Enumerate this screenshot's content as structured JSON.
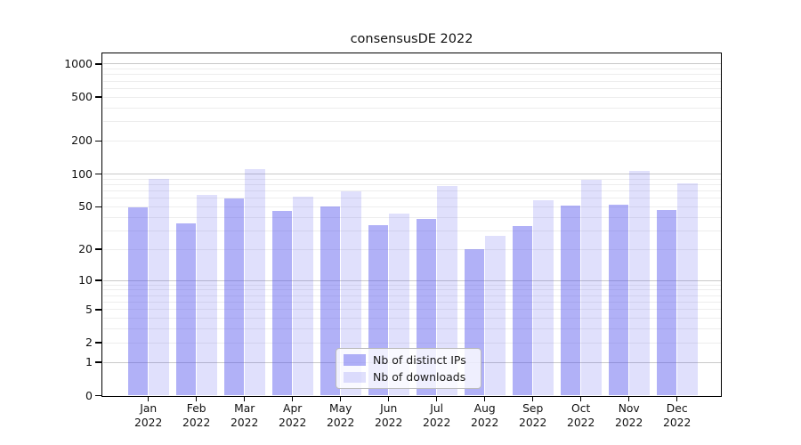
{
  "figure": {
    "title": "consensusDE 2022",
    "background": "#ffffff"
  },
  "chart_data": {
    "type": "bar",
    "title": "consensusDE 2022",
    "categories": [
      "Jan 2022",
      "Feb 2022",
      "Mar 2022",
      "Apr 2022",
      "May 2022",
      "Jun 2022",
      "Jul 2022",
      "Aug 2022",
      "Sep 2022",
      "Oct 2022",
      "Nov 2022",
      "Dec 2022"
    ],
    "series": [
      {
        "name": "Nb of distinct IPs",
        "values": [
          49,
          35,
          60,
          46,
          50,
          34,
          39,
          20,
          33,
          51,
          52,
          47
        ],
        "fill": "rgba(82,82,238,0.45)",
        "hex_over_white": "#a9a9f7"
      },
      {
        "name": "Nb of downloads",
        "values": [
          90,
          65,
          110,
          62,
          70,
          43,
          78,
          27,
          58,
          88,
          107,
          82
        ],
        "fill": "rgba(82,82,238,0.18)",
        "hex_over_white": "#dcdcf8"
      }
    ],
    "yscale": "log10(1+x)",
    "ytick_labels": [
      0,
      1,
      2,
      5,
      10,
      20,
      50,
      100,
      200,
      500,
      1000
    ],
    "ylim": [
      0,
      1215
    ],
    "xlabel": "",
    "ylabel": "",
    "grid": true,
    "legend_position": "inside-bottom-center"
  },
  "colors": {
    "axis": "#000000",
    "grid_decade": "#c9c9c9",
    "grid_minor": "#ededed",
    "legend_border": "#bbbbbb",
    "text": "#111111"
  }
}
